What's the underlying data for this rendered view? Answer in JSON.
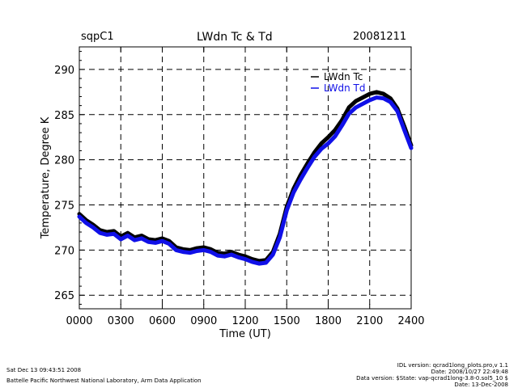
{
  "header": {
    "site": "sqpC1",
    "title": "LWdn Tc & Td",
    "date": "20081211"
  },
  "footer": {
    "left_line1": "Sat Dec 13 09:43:51 2008",
    "left_line2": "Battelle Pacific Northwest National Laboratory, Arm Data Application",
    "right_line1": "IDL version: qcrad1long_plots.pro,v 1.1",
    "right_line2": "Date: 2008/10/27 22:49:48",
    "right_line3": "Data version: $State: vap-qcrad1long-3.8-0.sol5_10 $",
    "right_line4": "Date: 13-Dec-2008"
  },
  "chart_data": {
    "type": "line",
    "title": "LWdn Tc & Td",
    "xlabel": "Time (UT)",
    "ylabel": "Temperature, Degree K",
    "xlim": [
      0,
      2400
    ],
    "ylim": [
      263.5,
      292.5
    ],
    "x_ticks": [
      "0000",
      "0300",
      "0600",
      "0900",
      "1200",
      "1500",
      "1800",
      "2100",
      "2400"
    ],
    "y_ticks": [
      265,
      270,
      275,
      280,
      285,
      290
    ],
    "grid": true,
    "legend_position": "top-right",
    "series": [
      {
        "name": "LWdn Tc",
        "color": "#000000",
        "x": [
          0,
          50,
          100,
          150,
          200,
          250,
          300,
          350,
          400,
          450,
          500,
          550,
          600,
          650,
          700,
          750,
          800,
          850,
          900,
          950,
          1000,
          1050,
          1100,
          1150,
          1200,
          1250,
          1300,
          1350,
          1400,
          1450,
          1500,
          1550,
          1600,
          1650,
          1700,
          1750,
          1800,
          1850,
          1900,
          1950,
          2000,
          2050,
          2100,
          2150,
          2200,
          2250,
          2300,
          2350,
          2400
        ],
        "y": [
          274.0,
          273.3,
          272.8,
          272.2,
          272.0,
          272.1,
          271.5,
          271.9,
          271.4,
          271.6,
          271.2,
          271.1,
          271.3,
          271.0,
          270.3,
          270.1,
          270.0,
          270.2,
          270.3,
          270.1,
          269.7,
          269.6,
          269.8,
          269.5,
          269.3,
          269.0,
          268.8,
          268.9,
          269.8,
          271.8,
          274.8,
          276.8,
          278.3,
          279.6,
          280.8,
          281.8,
          282.5,
          283.3,
          284.4,
          285.8,
          286.5,
          286.9,
          287.3,
          287.5,
          287.3,
          286.8,
          285.7,
          283.7,
          281.6
        ]
      },
      {
        "name": "LWdn Td",
        "color": "#1010e8",
        "x": [
          0,
          50,
          100,
          150,
          200,
          250,
          300,
          350,
          400,
          450,
          500,
          550,
          600,
          650,
          700,
          750,
          800,
          850,
          900,
          950,
          1000,
          1050,
          1100,
          1150,
          1200,
          1250,
          1300,
          1350,
          1400,
          1450,
          1500,
          1550,
          1600,
          1650,
          1700,
          1750,
          1800,
          1850,
          1900,
          1950,
          2000,
          2050,
          2100,
          2150,
          2200,
          2250,
          2300,
          2350,
          2400
        ],
        "y": [
          273.7,
          273.0,
          272.5,
          271.9,
          271.7,
          271.8,
          271.2,
          271.6,
          271.1,
          271.3,
          270.9,
          270.8,
          271.0,
          270.7,
          270.0,
          269.8,
          269.7,
          269.9,
          270.0,
          269.8,
          269.4,
          269.3,
          269.5,
          269.2,
          269.0,
          268.7,
          268.5,
          268.6,
          269.5,
          271.4,
          274.4,
          276.4,
          277.8,
          279.1,
          280.3,
          281.2,
          281.8,
          282.6,
          283.8,
          285.1,
          285.8,
          286.2,
          286.6,
          286.9,
          286.8,
          286.4,
          285.4,
          283.3,
          281.3
        ]
      }
    ]
  }
}
